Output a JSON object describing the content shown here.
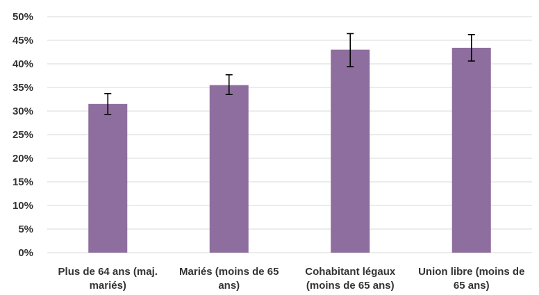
{
  "chart_data": {
    "type": "bar",
    "categories": [
      "Plus de 64 ans (maj. mariés)",
      "Mariés (moins de 65 ans)",
      "Cohabitant légaux (moins de 65 ans)",
      "Union libre (moins de 65 ans)"
    ],
    "values": [
      31.5,
      35.5,
      43.0,
      43.4
    ],
    "error_low": [
      29.3,
      33.5,
      39.4,
      40.6
    ],
    "error_high": [
      33.7,
      37.7,
      46.4,
      46.2
    ],
    "ylim": [
      0,
      50
    ],
    "yticks": [
      "0%",
      "5%",
      "10%",
      "15%",
      "20%",
      "25%",
      "30%",
      "35%",
      "40%",
      "45%",
      "50%"
    ],
    "grid": true,
    "colors": {
      "bar": "#8E6E9E",
      "grid": "#D9D9D9",
      "error": "#000000"
    }
  }
}
